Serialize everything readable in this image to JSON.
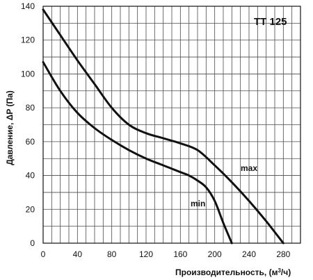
{
  "chart_data": {
    "type": "line",
    "title": "TT 125",
    "xlabel": "Производительность, (м³/ч)",
    "ylabel": "Давление, ΔP (Па)",
    "xlim": [
      0,
      300
    ],
    "ylim": [
      0,
      140
    ],
    "x_ticks": [
      0,
      40,
      80,
      120,
      160,
      200,
      240,
      280
    ],
    "y_ticks": [
      0,
      20,
      40,
      60,
      80,
      100,
      120,
      140
    ],
    "grid": true,
    "series": [
      {
        "name": "max",
        "x": [
          0,
          20,
          40,
          60,
          80,
          100,
          120,
          140,
          160,
          180,
          200,
          220,
          240,
          260,
          280
        ],
        "values": [
          138,
          123,
          108,
          94,
          80,
          70,
          65,
          62,
          59,
          55,
          46,
          36,
          25,
          13,
          0
        ]
      },
      {
        "name": "min",
        "x": [
          0,
          20,
          40,
          60,
          80,
          100,
          120,
          140,
          160,
          170,
          180,
          190,
          200,
          210,
          220
        ],
        "values": [
          107,
          90,
          77,
          68,
          61,
          55,
          50,
          46,
          42,
          40,
          37,
          33,
          25,
          12,
          0
        ]
      }
    ]
  }
}
